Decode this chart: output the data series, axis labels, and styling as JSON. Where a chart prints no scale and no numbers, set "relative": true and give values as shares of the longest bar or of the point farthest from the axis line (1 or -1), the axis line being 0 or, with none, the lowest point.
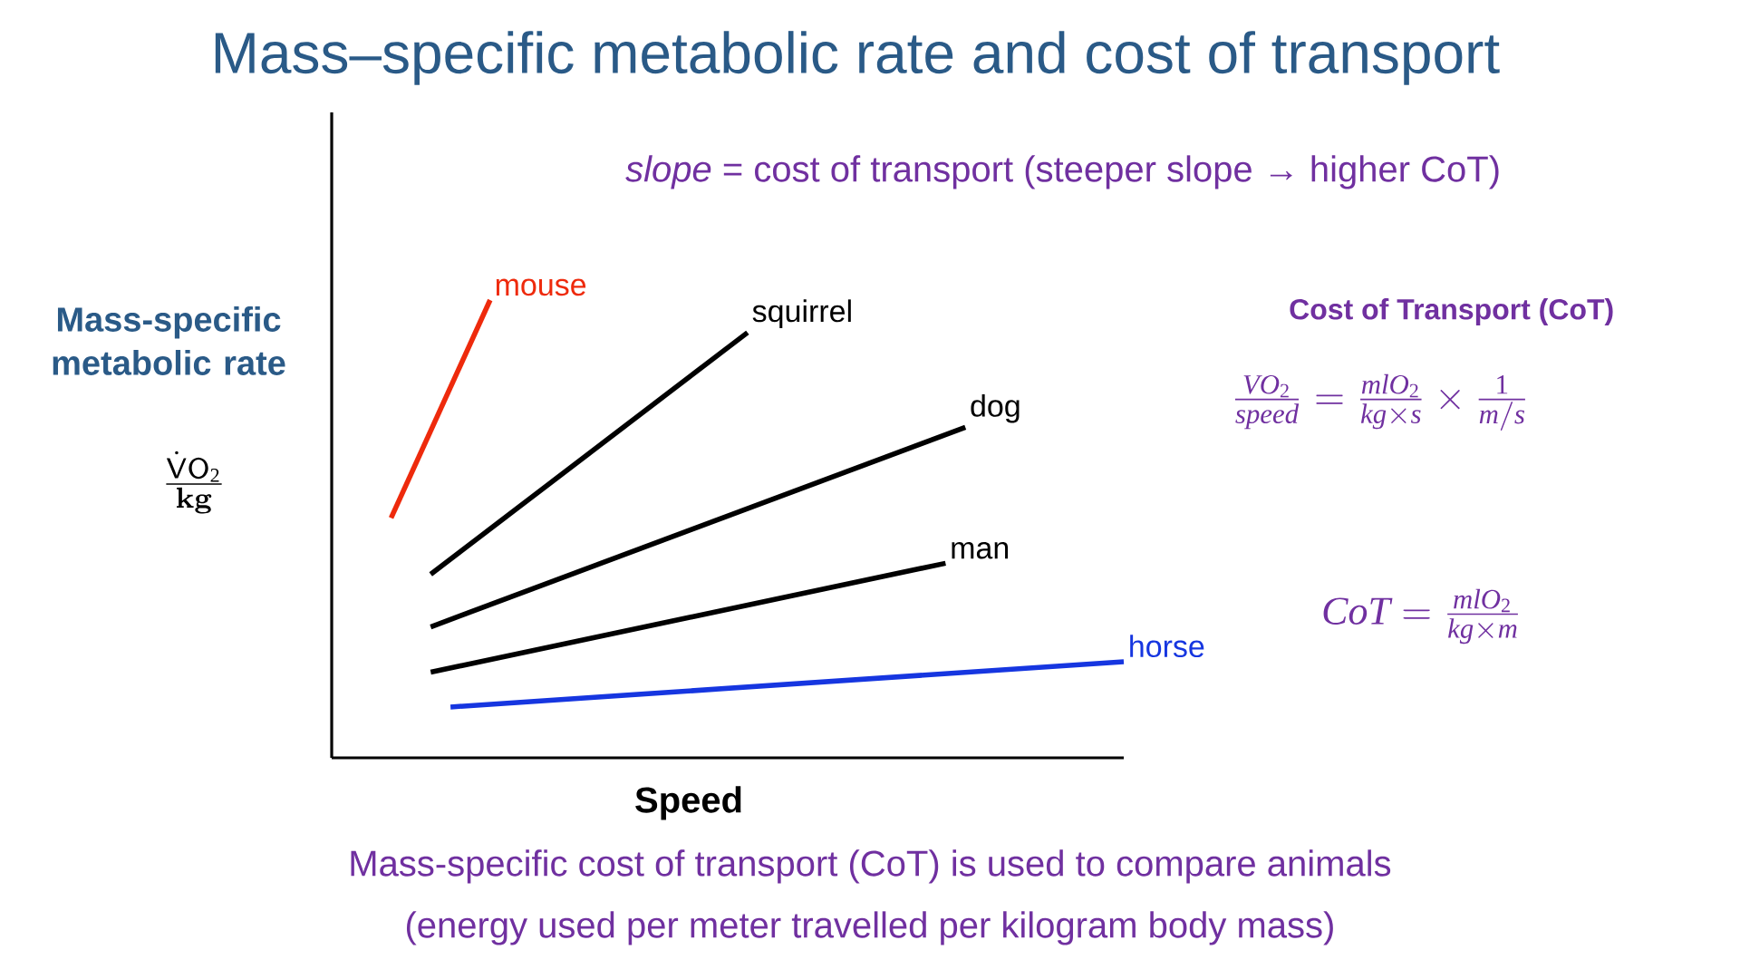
{
  "chart_data": {
    "type": "line",
    "title": "Mass–specific metabolic rate and cost of transport",
    "ylabel": "Mass-specific metabolic rate",
    "xlabel": "Speed",
    "relative": true,
    "categories": [
      null,
      null,
      null,
      null,
      null,
      null,
      null,
      null,
      null,
      null,
      null,
      null,
      null,
      null,
      null,
      null,
      null,
      null,
      null,
      null,
      null,
      null,
      null,
      null,
      null,
      null,
      null,
      null,
      null,
      null,
      null,
      null,
      null,
      null,
      null,
      null,
      null,
      null,
      null,
      null,
      null
    ],
    "series": [
      {
        "name": "mouse",
        "color": "#ee2a0c",
        "values": [
          null,
          null,
          null,
          0.524,
          null,
          null,
          null,
          null,
          1.0,
          null,
          null,
          null,
          null,
          null,
          null,
          null,
          null,
          null,
          null,
          null,
          null,
          null,
          null,
          null,
          null,
          null,
          null,
          null,
          null,
          null,
          null,
          null,
          null,
          null,
          null,
          null,
          null,
          null,
          null,
          null,
          null
        ]
      },
      {
        "name": "squirrel",
        "color": "#000000",
        "values": [
          null,
          null,
          null,
          null,
          null,
          0.401,
          null,
          null,
          null,
          null,
          null,
          null,
          null,
          null,
          null,
          null,
          null,
          null,
          null,
          null,
          null,
          0.929,
          null,
          null,
          null,
          null,
          null,
          null,
          null,
          null,
          null,
          null,
          null,
          null,
          null,
          null,
          null,
          null,
          null,
          null,
          null
        ]
      },
      {
        "name": "dog",
        "color": "#000000",
        "values": [
          null,
          null,
          null,
          null,
          null,
          0.286,
          null,
          null,
          null,
          null,
          null,
          null,
          null,
          null,
          null,
          null,
          null,
          null,
          null,
          null,
          null,
          null,
          null,
          null,
          null,
          null,
          null,
          null,
          null,
          null,
          null,
          null,
          0.722,
          null,
          null,
          null,
          null,
          null,
          null,
          null,
          null
        ]
      },
      {
        "name": "man",
        "color": "#000000",
        "values": [
          null,
          null,
          null,
          null,
          null,
          0.187,
          null,
          null,
          null,
          null,
          null,
          null,
          null,
          null,
          null,
          null,
          null,
          null,
          null,
          null,
          null,
          null,
          null,
          null,
          null,
          null,
          null,
          null,
          null,
          null,
          null,
          0.425,
          null,
          null,
          null,
          null,
          null,
          null,
          null,
          null,
          null
        ]
      },
      {
        "name": "horse",
        "color": "#1636e0",
        "values": [
          null,
          null,
          null,
          null,
          null,
          null,
          0.111,
          null,
          null,
          null,
          null,
          null,
          null,
          null,
          null,
          null,
          null,
          null,
          null,
          null,
          null,
          null,
          null,
          null,
          null,
          null,
          null,
          null,
          null,
          null,
          null,
          null,
          null,
          null,
          null,
          null,
          null,
          null,
          null,
          null,
          0.21
        ]
      }
    ],
    "annotations": [
      "*slope* = cost of transport (steeper slope → higher CoT)",
      "Cost of Transport (CoT)",
      "\\frac{VO_2}{speed}=\\frac{mlO_2}{kg\\times s}\\times\\frac{1}{m/s}",
      "CoT=\\frac{mlO_2}{kg\\times m}",
      "Mass-specific cost of transport (CoT) is used to compare animals",
      "(energy used per meter travelled per kilogram body mass)",
      "\\frac{\\dot{\\mathsf{V}}\\mathsf{O}_2}{\\mathbf{kg}}"
    ]
  }
}
